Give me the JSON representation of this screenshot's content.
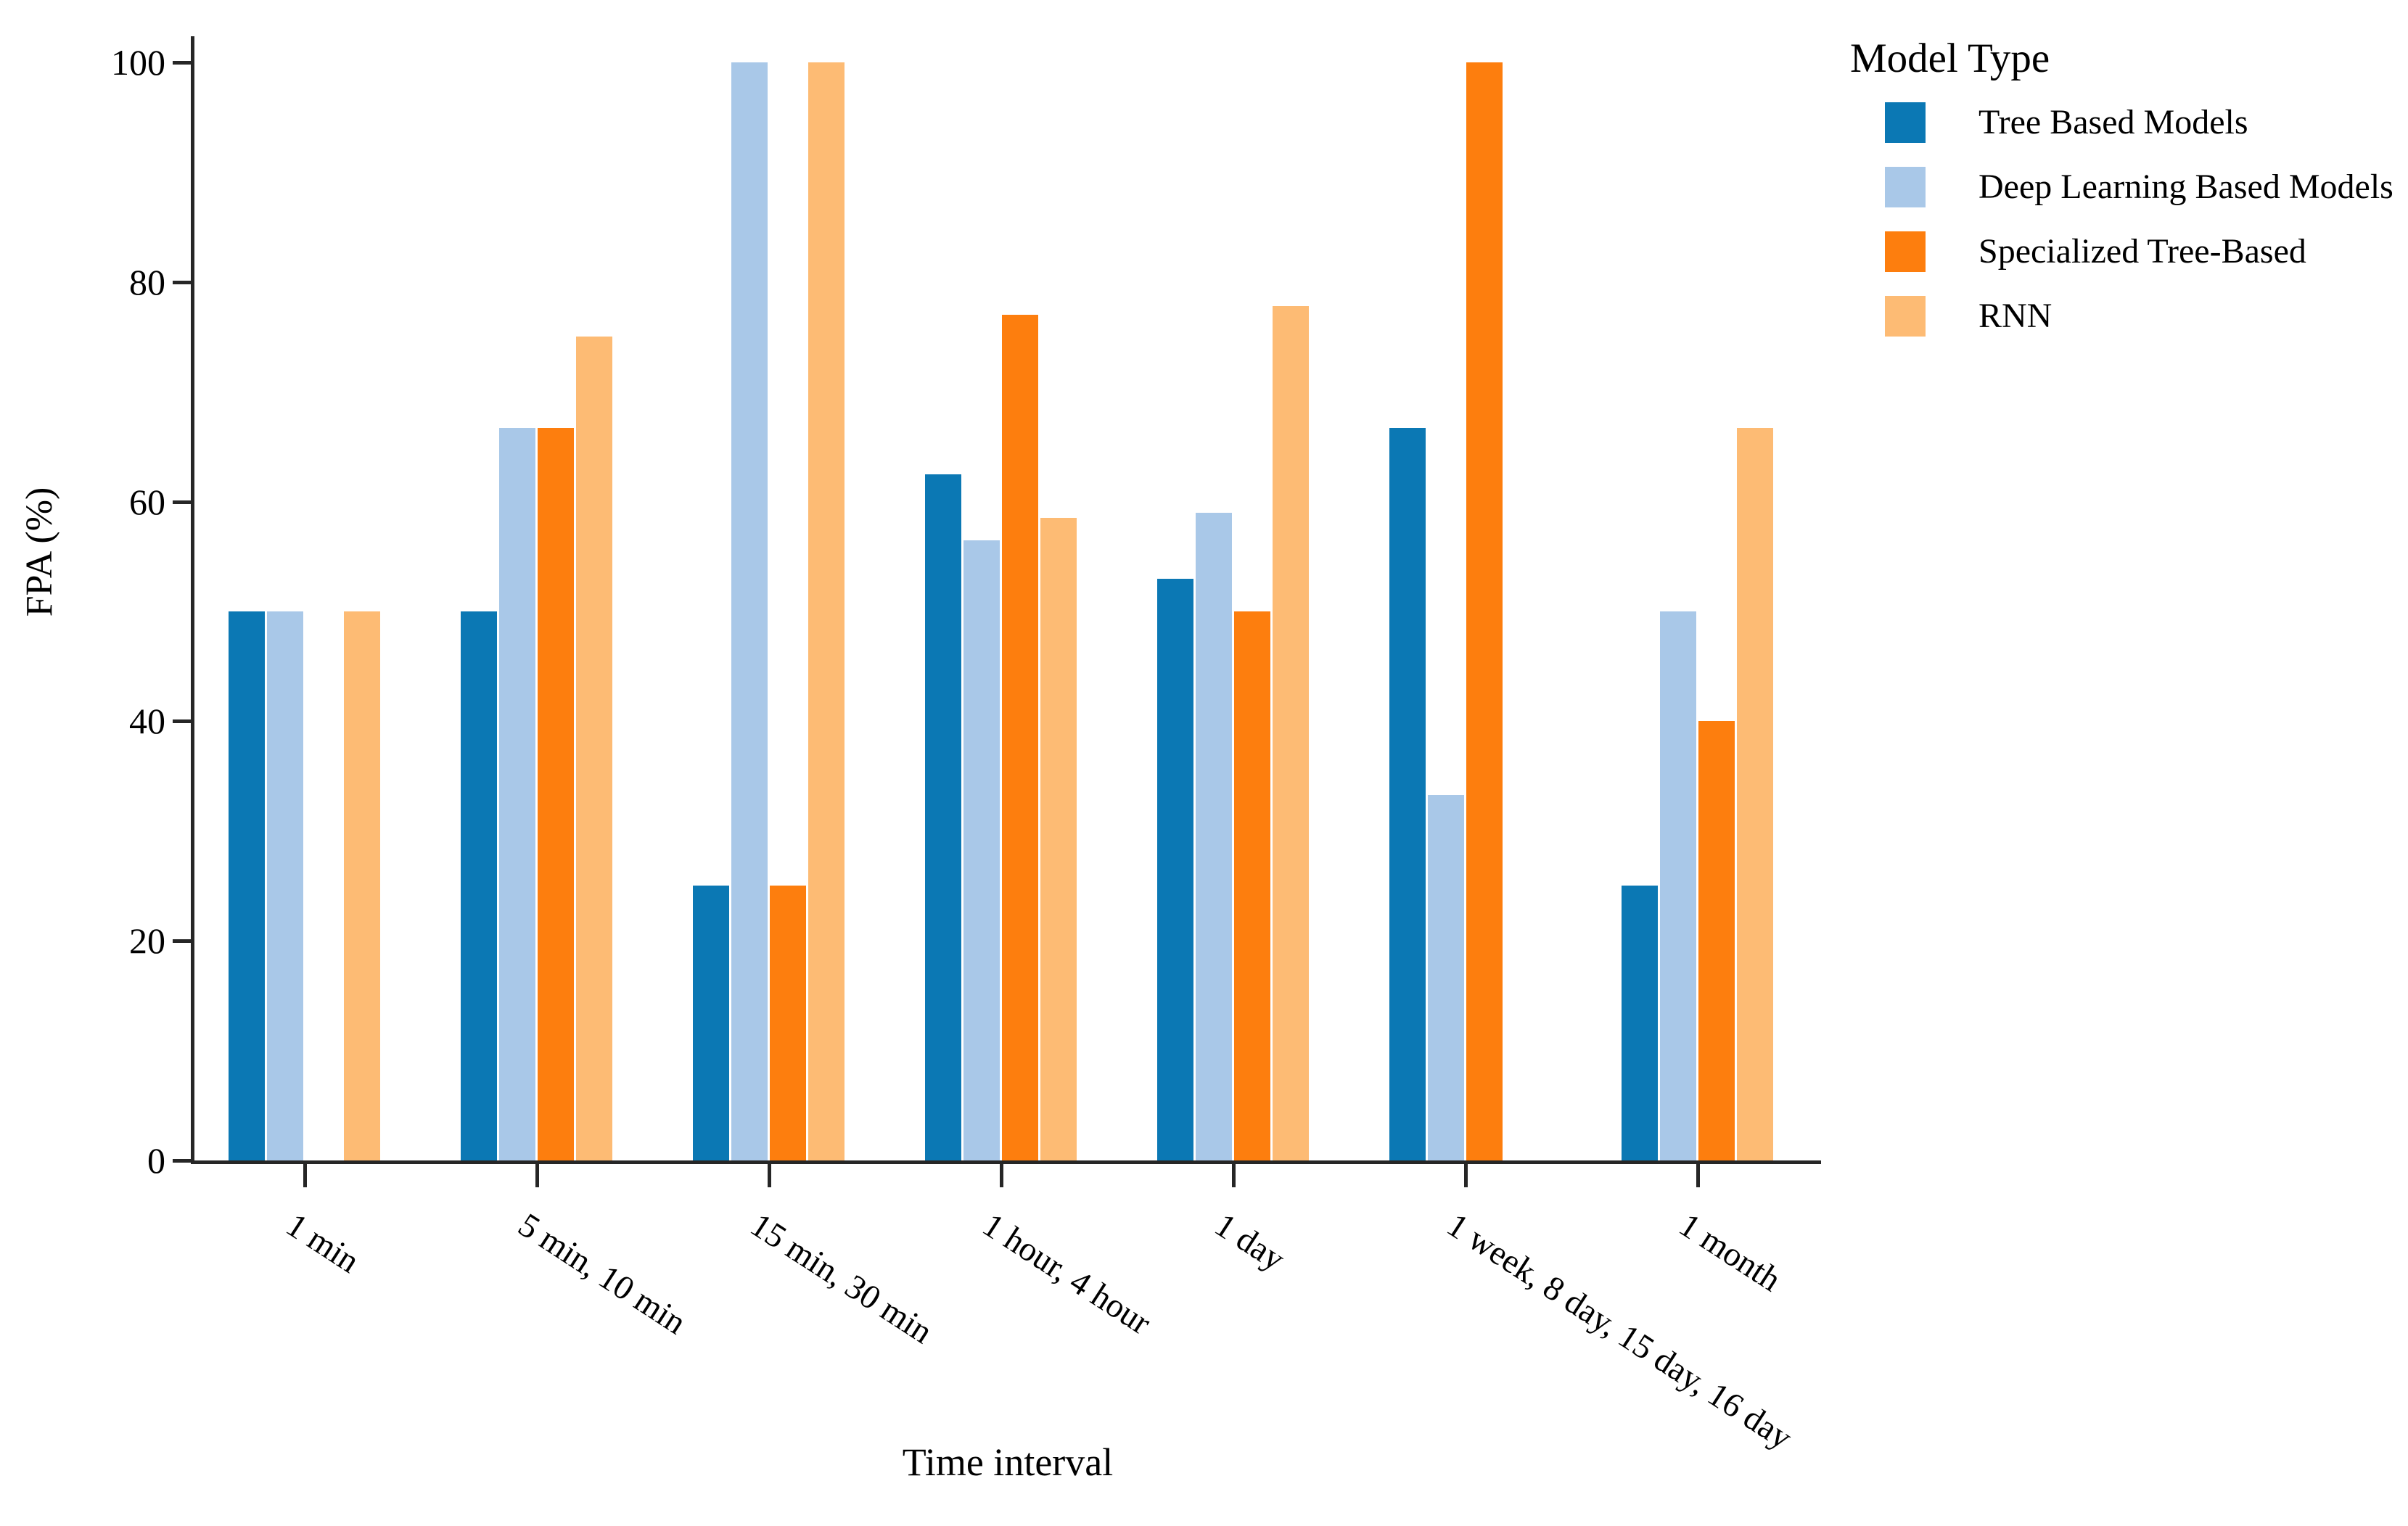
{
  "chart_data": {
    "type": "bar",
    "title": "",
    "xlabel": "Time interval",
    "ylabel": "FPA (%)",
    "ylim": [
      0,
      100
    ],
    "yticks": [
      0,
      20,
      40,
      60,
      80,
      100
    ],
    "grid": false,
    "legend_title": "Model Type",
    "legend_position": "outside-top-right",
    "categories": [
      "1 min",
      "5 min, 10 min",
      "15 min, 30 min",
      "1 hour, 4 hour",
      "1 day",
      "1 week, 8 day, 15 day, 16 day",
      "1 month"
    ],
    "series": [
      {
        "name": "Tree Based Models",
        "color": "#0b78b4",
        "values": [
          50,
          50,
          25,
          62.5,
          53,
          66.7,
          25
        ]
      },
      {
        "name": "Deep Learning Based Models",
        "color": "#a9c8e8",
        "values": [
          50,
          66.7,
          100,
          56.5,
          59,
          33.3,
          50
        ]
      },
      {
        "name": "Specialized Tree-Based",
        "color": "#fd7e0e",
        "values": [
          null,
          66.7,
          25,
          77,
          50,
          100,
          40
        ]
      },
      {
        "name": "RNN",
        "color": "#fdbb74",
        "values": [
          50,
          75,
          100,
          58.5,
          77.8,
          null,
          66.7
        ]
      }
    ]
  }
}
